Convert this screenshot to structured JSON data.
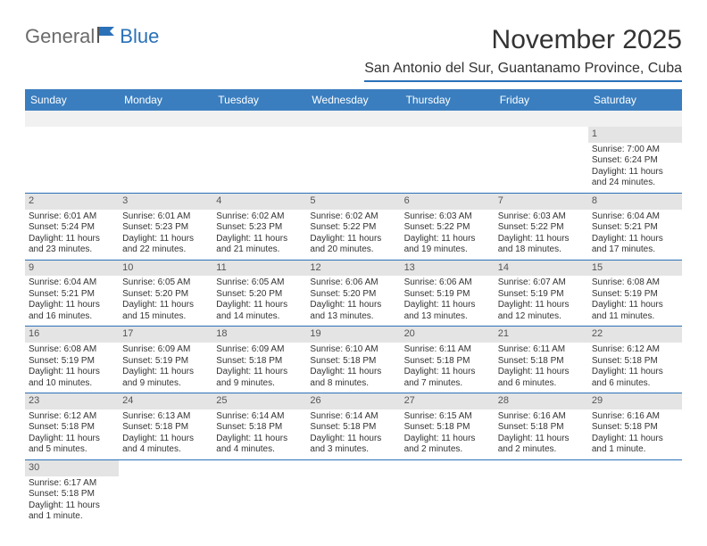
{
  "brand": {
    "part1": "General",
    "part2": "Blue",
    "text_color": "#6b6b6b",
    "accent_color": "#2a71b8"
  },
  "title": "November 2025",
  "location": "San Antonio del Sur, Guantanamo Province, Cuba",
  "colors": {
    "header_bg": "#3a7ebf",
    "header_text": "#ffffff",
    "rule": "#2a71b8",
    "daynum_bg": "#e4e4e4",
    "blank_bg": "#f1f1f1",
    "text": "#333333"
  },
  "weekdays": [
    "Sunday",
    "Monday",
    "Tuesday",
    "Wednesday",
    "Thursday",
    "Friday",
    "Saturday"
  ],
  "days": {
    "1": {
      "sunrise": "7:00 AM",
      "sunset": "6:24 PM",
      "daylight": "11 hours and 24 minutes."
    },
    "2": {
      "sunrise": "6:01 AM",
      "sunset": "5:24 PM",
      "daylight": "11 hours and 23 minutes."
    },
    "3": {
      "sunrise": "6:01 AM",
      "sunset": "5:23 PM",
      "daylight": "11 hours and 22 minutes."
    },
    "4": {
      "sunrise": "6:02 AM",
      "sunset": "5:23 PM",
      "daylight": "11 hours and 21 minutes."
    },
    "5": {
      "sunrise": "6:02 AM",
      "sunset": "5:22 PM",
      "daylight": "11 hours and 20 minutes."
    },
    "6": {
      "sunrise": "6:03 AM",
      "sunset": "5:22 PM",
      "daylight": "11 hours and 19 minutes."
    },
    "7": {
      "sunrise": "6:03 AM",
      "sunset": "5:22 PM",
      "daylight": "11 hours and 18 minutes."
    },
    "8": {
      "sunrise": "6:04 AM",
      "sunset": "5:21 PM",
      "daylight": "11 hours and 17 minutes."
    },
    "9": {
      "sunrise": "6:04 AM",
      "sunset": "5:21 PM",
      "daylight": "11 hours and 16 minutes."
    },
    "10": {
      "sunrise": "6:05 AM",
      "sunset": "5:20 PM",
      "daylight": "11 hours and 15 minutes."
    },
    "11": {
      "sunrise": "6:05 AM",
      "sunset": "5:20 PM",
      "daylight": "11 hours and 14 minutes."
    },
    "12": {
      "sunrise": "6:06 AM",
      "sunset": "5:20 PM",
      "daylight": "11 hours and 13 minutes."
    },
    "13": {
      "sunrise": "6:06 AM",
      "sunset": "5:19 PM",
      "daylight": "11 hours and 13 minutes."
    },
    "14": {
      "sunrise": "6:07 AM",
      "sunset": "5:19 PM",
      "daylight": "11 hours and 12 minutes."
    },
    "15": {
      "sunrise": "6:08 AM",
      "sunset": "5:19 PM",
      "daylight": "11 hours and 11 minutes."
    },
    "16": {
      "sunrise": "6:08 AM",
      "sunset": "5:19 PM",
      "daylight": "11 hours and 10 minutes."
    },
    "17": {
      "sunrise": "6:09 AM",
      "sunset": "5:19 PM",
      "daylight": "11 hours and 9 minutes."
    },
    "18": {
      "sunrise": "6:09 AM",
      "sunset": "5:18 PM",
      "daylight": "11 hours and 9 minutes."
    },
    "19": {
      "sunrise": "6:10 AM",
      "sunset": "5:18 PM",
      "daylight": "11 hours and 8 minutes."
    },
    "20": {
      "sunrise": "6:11 AM",
      "sunset": "5:18 PM",
      "daylight": "11 hours and 7 minutes."
    },
    "21": {
      "sunrise": "6:11 AM",
      "sunset": "5:18 PM",
      "daylight": "11 hours and 6 minutes."
    },
    "22": {
      "sunrise": "6:12 AM",
      "sunset": "5:18 PM",
      "daylight": "11 hours and 6 minutes."
    },
    "23": {
      "sunrise": "6:12 AM",
      "sunset": "5:18 PM",
      "daylight": "11 hours and 5 minutes."
    },
    "24": {
      "sunrise": "6:13 AM",
      "sunset": "5:18 PM",
      "daylight": "11 hours and 4 minutes."
    },
    "25": {
      "sunrise": "6:14 AM",
      "sunset": "5:18 PM",
      "daylight": "11 hours and 4 minutes."
    },
    "26": {
      "sunrise": "6:14 AM",
      "sunset": "5:18 PM",
      "daylight": "11 hours and 3 minutes."
    },
    "27": {
      "sunrise": "6:15 AM",
      "sunset": "5:18 PM",
      "daylight": "11 hours and 2 minutes."
    },
    "28": {
      "sunrise": "6:16 AM",
      "sunset": "5:18 PM",
      "daylight": "11 hours and 2 minutes."
    },
    "29": {
      "sunrise": "6:16 AM",
      "sunset": "5:18 PM",
      "daylight": "11 hours and 1 minute."
    },
    "30": {
      "sunrise": "6:17 AM",
      "sunset": "5:18 PM",
      "daylight": "11 hours and 1 minute."
    }
  },
  "labels": {
    "sunrise": "Sunrise: ",
    "sunset": "Sunset: ",
    "daylight": "Daylight: "
  },
  "layout": {
    "first_weekday_index": 6,
    "num_days": 30
  }
}
